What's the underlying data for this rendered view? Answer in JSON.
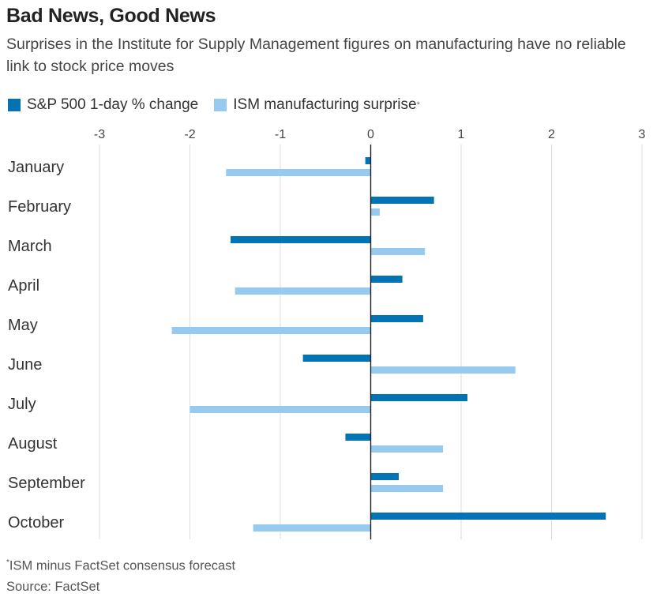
{
  "title": "Bad News, Good News",
  "subtitle": "Surprises in the Institute for Supply Management figures on manufacturing have no reliable link to stock price moves",
  "colors": {
    "sp500": "#0274b6",
    "ism": "#96cbef",
    "grid": "#dddddd",
    "zero_line": "#222222",
    "text": "#333333"
  },
  "legend": {
    "sp500_label": "S&P 500 1-day % change",
    "ism_label": "ISM manufacturing surprise",
    "ism_marker": "*"
  },
  "footnote": {
    "marker": "*",
    "text": "ISM minus FactSet consensus forecast"
  },
  "source": "Source: FactSet",
  "chart_data": {
    "type": "bar",
    "orientation": "horizontal",
    "categories": [
      "January",
      "February",
      "March",
      "April",
      "May",
      "June",
      "July",
      "August",
      "September",
      "October"
    ],
    "series": [
      {
        "name": "S&P 500 1-day % change",
        "values": [
          -0.06,
          0.7,
          -1.55,
          0.35,
          0.58,
          -0.75,
          1.07,
          -0.28,
          0.31,
          2.6
        ]
      },
      {
        "name": "ISM manufacturing surprise",
        "values": [
          -1.6,
          0.1,
          0.6,
          -1.5,
          -2.2,
          1.6,
          -2.0,
          0.8,
          0.8,
          -1.3
        ]
      }
    ],
    "xlim": [
      -3,
      3
    ],
    "xticks": [
      -3,
      -2,
      -1,
      0,
      1,
      2,
      3
    ],
    "xtick_labels": [
      "-3",
      "-2",
      "-1",
      "0",
      "1",
      "2",
      "3"
    ],
    "grid": "vertical",
    "legend_position": "top-left"
  }
}
